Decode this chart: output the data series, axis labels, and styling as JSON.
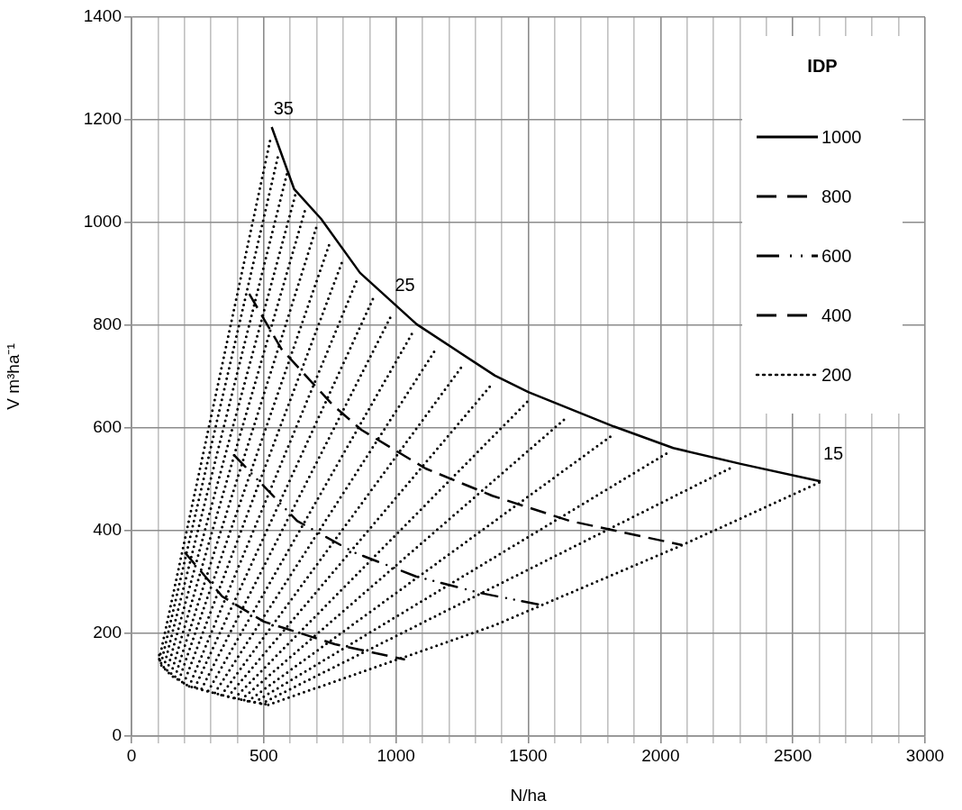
{
  "chart_data": {
    "type": "line",
    "xlabel": "N/ha",
    "ylabel": "V m³ha⁻¹",
    "legend_title": "IDP",
    "legend": "top right",
    "grid": true,
    "xlim": [
      0,
      3000
    ],
    "ylim": [
      0,
      1400
    ],
    "xticks": [
      0,
      {
        "value": 100,
        "label": null
      },
      {
        "value": 200,
        "label": null
      },
      {
        "value": 300,
        "label": null
      },
      {
        "value": 400,
        "label": null
      },
      500,
      {
        "value": 600,
        "label": null
      },
      {
        "value": 700,
        "label": null
      },
      {
        "value": 800,
        "label": null
      },
      {
        "value": 900,
        "label": null
      },
      1000,
      {
        "value": 1100,
        "label": null
      },
      {
        "value": 1200,
        "label": null
      },
      {
        "value": 1300,
        "label": null
      },
      {
        "value": 1400,
        "label": null
      },
      1500,
      {
        "value": 1600,
        "label": null
      },
      {
        "value": 1700,
        "label": null
      },
      {
        "value": 1800,
        "label": null
      },
      {
        "value": 1900,
        "label": null
      },
      2000,
      {
        "value": 2100,
        "label": null
      },
      {
        "value": 2200,
        "label": null
      },
      {
        "value": 2300,
        "label": null
      },
      {
        "value": 2400,
        "label": null
      },
      2500,
      {
        "value": 2600,
        "label": null
      },
      {
        "value": 2700,
        "label": null
      },
      {
        "value": 2800,
        "label": null
      },
      {
        "value": 2900,
        "label": null
      },
      3000
    ],
    "yticks": [
      0,
      200,
      400,
      600,
      800,
      1000,
      1200,
      1400
    ],
    "annotations": [
      {
        "text": "35",
        "x": 527,
        "y": 1167
      },
      {
        "text": "25",
        "x": 986,
        "y": 823
      },
      {
        "text": "15",
        "x": 2605,
        "y": 495
      }
    ],
    "series": [
      {
        "name": "1000",
        "color": "#000000",
        "line_style": "solid",
        "x": [
          530,
          615,
          717,
          864,
          1078,
          1374,
          1500,
          1823,
          2048,
          2303,
          2605
        ],
        "values": [
          1186,
          1065,
          1007,
          902,
          802,
          702,
          670,
          603,
          561,
          530,
          496
        ]
      },
      {
        "name": "800",
        "color": "#000000",
        "line_style": "dashed",
        "x": [
          445,
          568,
          762,
          870,
          1112,
          1364,
          1657,
          2082
        ],
        "values": [
          861,
          753,
          644,
          596,
          521,
          468,
          419,
          372
        ]
      },
      {
        "name": "600",
        "color": "#000000",
        "line_style": "dashdot",
        "x": [
          388,
          626,
          840,
          1075,
          1316,
          1561
        ],
        "values": [
          547,
          419,
          358,
          311,
          279,
          254
        ]
      },
      {
        "name": "400",
        "color": "#000000",
        "line_style": "dashed",
        "x": [
          201,
          343,
          500,
          769,
          1034
        ],
        "values": [
          358,
          272,
          223,
          179,
          149
        ]
      },
      {
        "name": "200",
        "color": "#000000",
        "line_style": "dotted",
        "x": [
          105,
          109,
          150,
          218,
          297,
          388,
          517
        ],
        "values": [
          158,
          140,
          118,
          97,
          86,
          74,
          61
        ]
      },
      {
        "color": "#000000",
        "line_style": "dotted",
        "x": [
          105,
          527
        ],
        "values": [
          150,
          1167
        ]
      },
      {
        "color": "#000000",
        "line_style": "dotted",
        "x": [
          112,
          555
        ],
        "values": [
          142,
          1132
        ]
      },
      {
        "color": "#000000",
        "line_style": "dotted",
        "x": [
          122,
          589
        ],
        "values": [
          134,
          1098
        ]
      },
      {
        "color": "#000000",
        "line_style": "dotted",
        "x": [
          135,
          623
        ],
        "values": [
          128,
          1061
        ]
      },
      {
        "color": "#000000",
        "line_style": "dotted",
        "x": [
          150,
          657
        ],
        "values": [
          122,
          1026
        ]
      },
      {
        "color": "#000000",
        "line_style": "dotted",
        "x": [
          165,
          700
        ],
        "values": [
          116,
          993
        ]
      },
      {
        "color": "#000000",
        "line_style": "dotted",
        "x": [
          180,
          748
        ],
        "values": [
          110,
          958
        ]
      },
      {
        "color": "#000000",
        "line_style": "dotted",
        "x": [
          198,
          796
        ],
        "values": [
          103,
          923
        ]
      },
      {
        "color": "#000000",
        "line_style": "dotted",
        "x": [
          218,
          853
        ],
        "values": [
          97,
          889
        ]
      },
      {
        "color": "#000000",
        "line_style": "dotted",
        "x": [
          240,
          915
        ],
        "values": [
          95,
          854
        ]
      },
      {
        "color": "#000000",
        "line_style": "dotted",
        "x": [
          265,
          986
        ],
        "values": [
          92,
          823
        ]
      },
      {
        "color": "#000000",
        "line_style": "dotted",
        "x": [
          290,
          1065
        ],
        "values": [
          88,
          788
        ]
      },
      {
        "color": "#000000",
        "line_style": "dotted",
        "x": [
          315,
          1150
        ],
        "values": [
          84,
          753
        ]
      },
      {
        "color": "#000000",
        "line_style": "dotted",
        "x": [
          340,
          1248
        ],
        "values": [
          80,
          719
        ]
      },
      {
        "color": "#000000",
        "line_style": "dotted",
        "x": [
          365,
          1367
        ],
        "values": [
          77,
          688
        ]
      },
      {
        "color": "#000000",
        "line_style": "dotted",
        "x": [
          390,
          1500
        ],
        "values": [
          74,
          653
        ]
      },
      {
        "color": "#000000",
        "line_style": "dotted",
        "x": [
          415,
          1646
        ],
        "values": [
          71,
          621
        ]
      },
      {
        "color": "#000000",
        "line_style": "dotted",
        "x": [
          440,
          1823
        ],
        "values": [
          68,
          588
        ]
      },
      {
        "color": "#000000",
        "line_style": "dotted",
        "x": [
          465,
          2031
        ],
        "values": [
          66,
          553
        ]
      },
      {
        "color": "#000000",
        "line_style": "dotted",
        "x": [
          490,
          2276
        ],
        "values": [
          63,
          525
        ]
      },
      {
        "color": "#000000",
        "line_style": "dotted",
        "x": [
          517,
          1364,
          2082,
          2605
        ],
        "values": [
          61,
          214,
          372,
          495
        ]
      }
    ]
  }
}
